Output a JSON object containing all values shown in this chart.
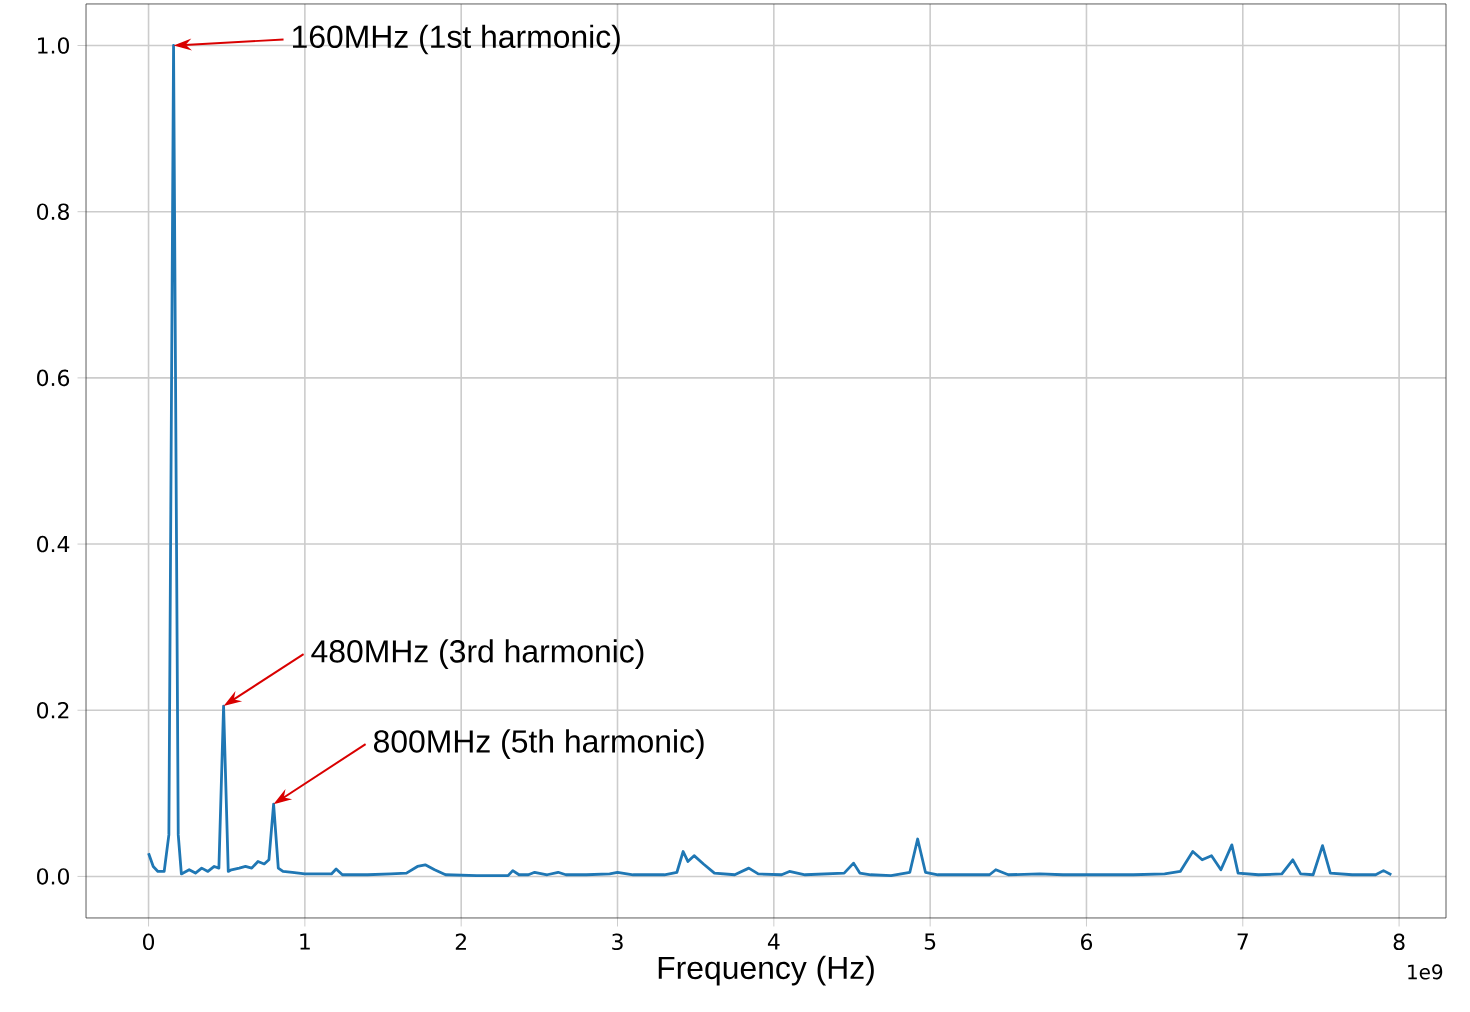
{
  "chart_data": {
    "type": "line",
    "xlabel": "Frequency (Hz)",
    "x": [
      0,
      0.03,
      0.06,
      0.1,
      0.13,
      0.16,
      0.19,
      0.21,
      0.26,
      0.3,
      0.34,
      0.38,
      0.42,
      0.45,
      0.48,
      0.51,
      0.53,
      0.58,
      0.62,
      0.66,
      0.7,
      0.74,
      0.77,
      0.8,
      0.83,
      0.86,
      0.92,
      1.0,
      1.1,
      1.17,
      1.2,
      1.24,
      1.4,
      1.55,
      1.65,
      1.72,
      1.77,
      1.83,
      1.9,
      2.1,
      2.3,
      2.33,
      2.37,
      2.43,
      2.47,
      2.55,
      2.62,
      2.67,
      2.8,
      2.95,
      3.0,
      3.1,
      3.3,
      3.38,
      3.42,
      3.45,
      3.49,
      3.55,
      3.62,
      3.75,
      3.84,
      3.9,
      4.05,
      4.1,
      4.2,
      4.45,
      4.51,
      4.55,
      4.62,
      4.75,
      4.87,
      4.92,
      4.97,
      5.05,
      5.2,
      5.38,
      5.42,
      5.5,
      5.7,
      5.85,
      6.0,
      6.3,
      6.5,
      6.6,
      6.68,
      6.74,
      6.8,
      6.86,
      6.93,
      6.97,
      7.1,
      7.25,
      7.32,
      7.37,
      7.45,
      7.51,
      7.56,
      7.7,
      7.85,
      7.9,
      7.95
    ],
    "series": [
      {
        "color": "#1f77b4",
        "values": [
          0.028,
          0.012,
          0.006,
          0.006,
          0.05,
          1.0,
          0.05,
          0.003,
          0.008,
          0.004,
          0.01,
          0.006,
          0.012,
          0.01,
          0.205,
          0.006,
          0.008,
          0.01,
          0.012,
          0.01,
          0.018,
          0.015,
          0.02,
          0.087,
          0.01,
          0.006,
          0.005,
          0.003,
          0.003,
          0.003,
          0.009,
          0.002,
          0.002,
          0.003,
          0.004,
          0.012,
          0.014,
          0.008,
          0.002,
          0.001,
          0.001,
          0.007,
          0.002,
          0.002,
          0.005,
          0.002,
          0.005,
          0.002,
          0.002,
          0.003,
          0.005,
          0.002,
          0.002,
          0.005,
          0.03,
          0.018,
          0.025,
          0.015,
          0.004,
          0.002,
          0.01,
          0.003,
          0.002,
          0.006,
          0.002,
          0.004,
          0.016,
          0.004,
          0.002,
          0.001,
          0.005,
          0.045,
          0.005,
          0.002,
          0.002,
          0.002,
          0.008,
          0.002,
          0.003,
          0.002,
          0.002,
          0.002,
          0.003,
          0.006,
          0.03,
          0.02,
          0.025,
          0.008,
          0.038,
          0.004,
          0.002,
          0.003,
          0.02,
          0.003,
          0.002,
          0.037,
          0.004,
          0.002,
          0.002,
          0.007,
          0.002
        ]
      }
    ],
    "xlim": [
      -0.4,
      8.3
    ],
    "ylim": [
      -0.05,
      1.05
    ],
    "xticks": [
      0,
      1,
      2,
      3,
      4,
      5,
      6,
      7,
      8
    ],
    "yticks": [
      {
        "value": 0,
        "label": "0.0"
      },
      0.2,
      0.4,
      0.6,
      0.8,
      {
        "value": 1,
        "label": "1.0"
      }
    ],
    "grid": true,
    "line_style": "solid",
    "marker": "none",
    "annotations": [
      {
        "text": "160MHz (1st harmonic)",
        "x": 0.16,
        "y": 1.0
      },
      {
        "text": "480MHz (3rd harmonic)",
        "x": 0.48,
        "y": 0.205
      },
      {
        "text": "800MHz (5th harmonic)",
        "x": 0.8,
        "y": 0.087
      },
      "1e9"
    ]
  }
}
